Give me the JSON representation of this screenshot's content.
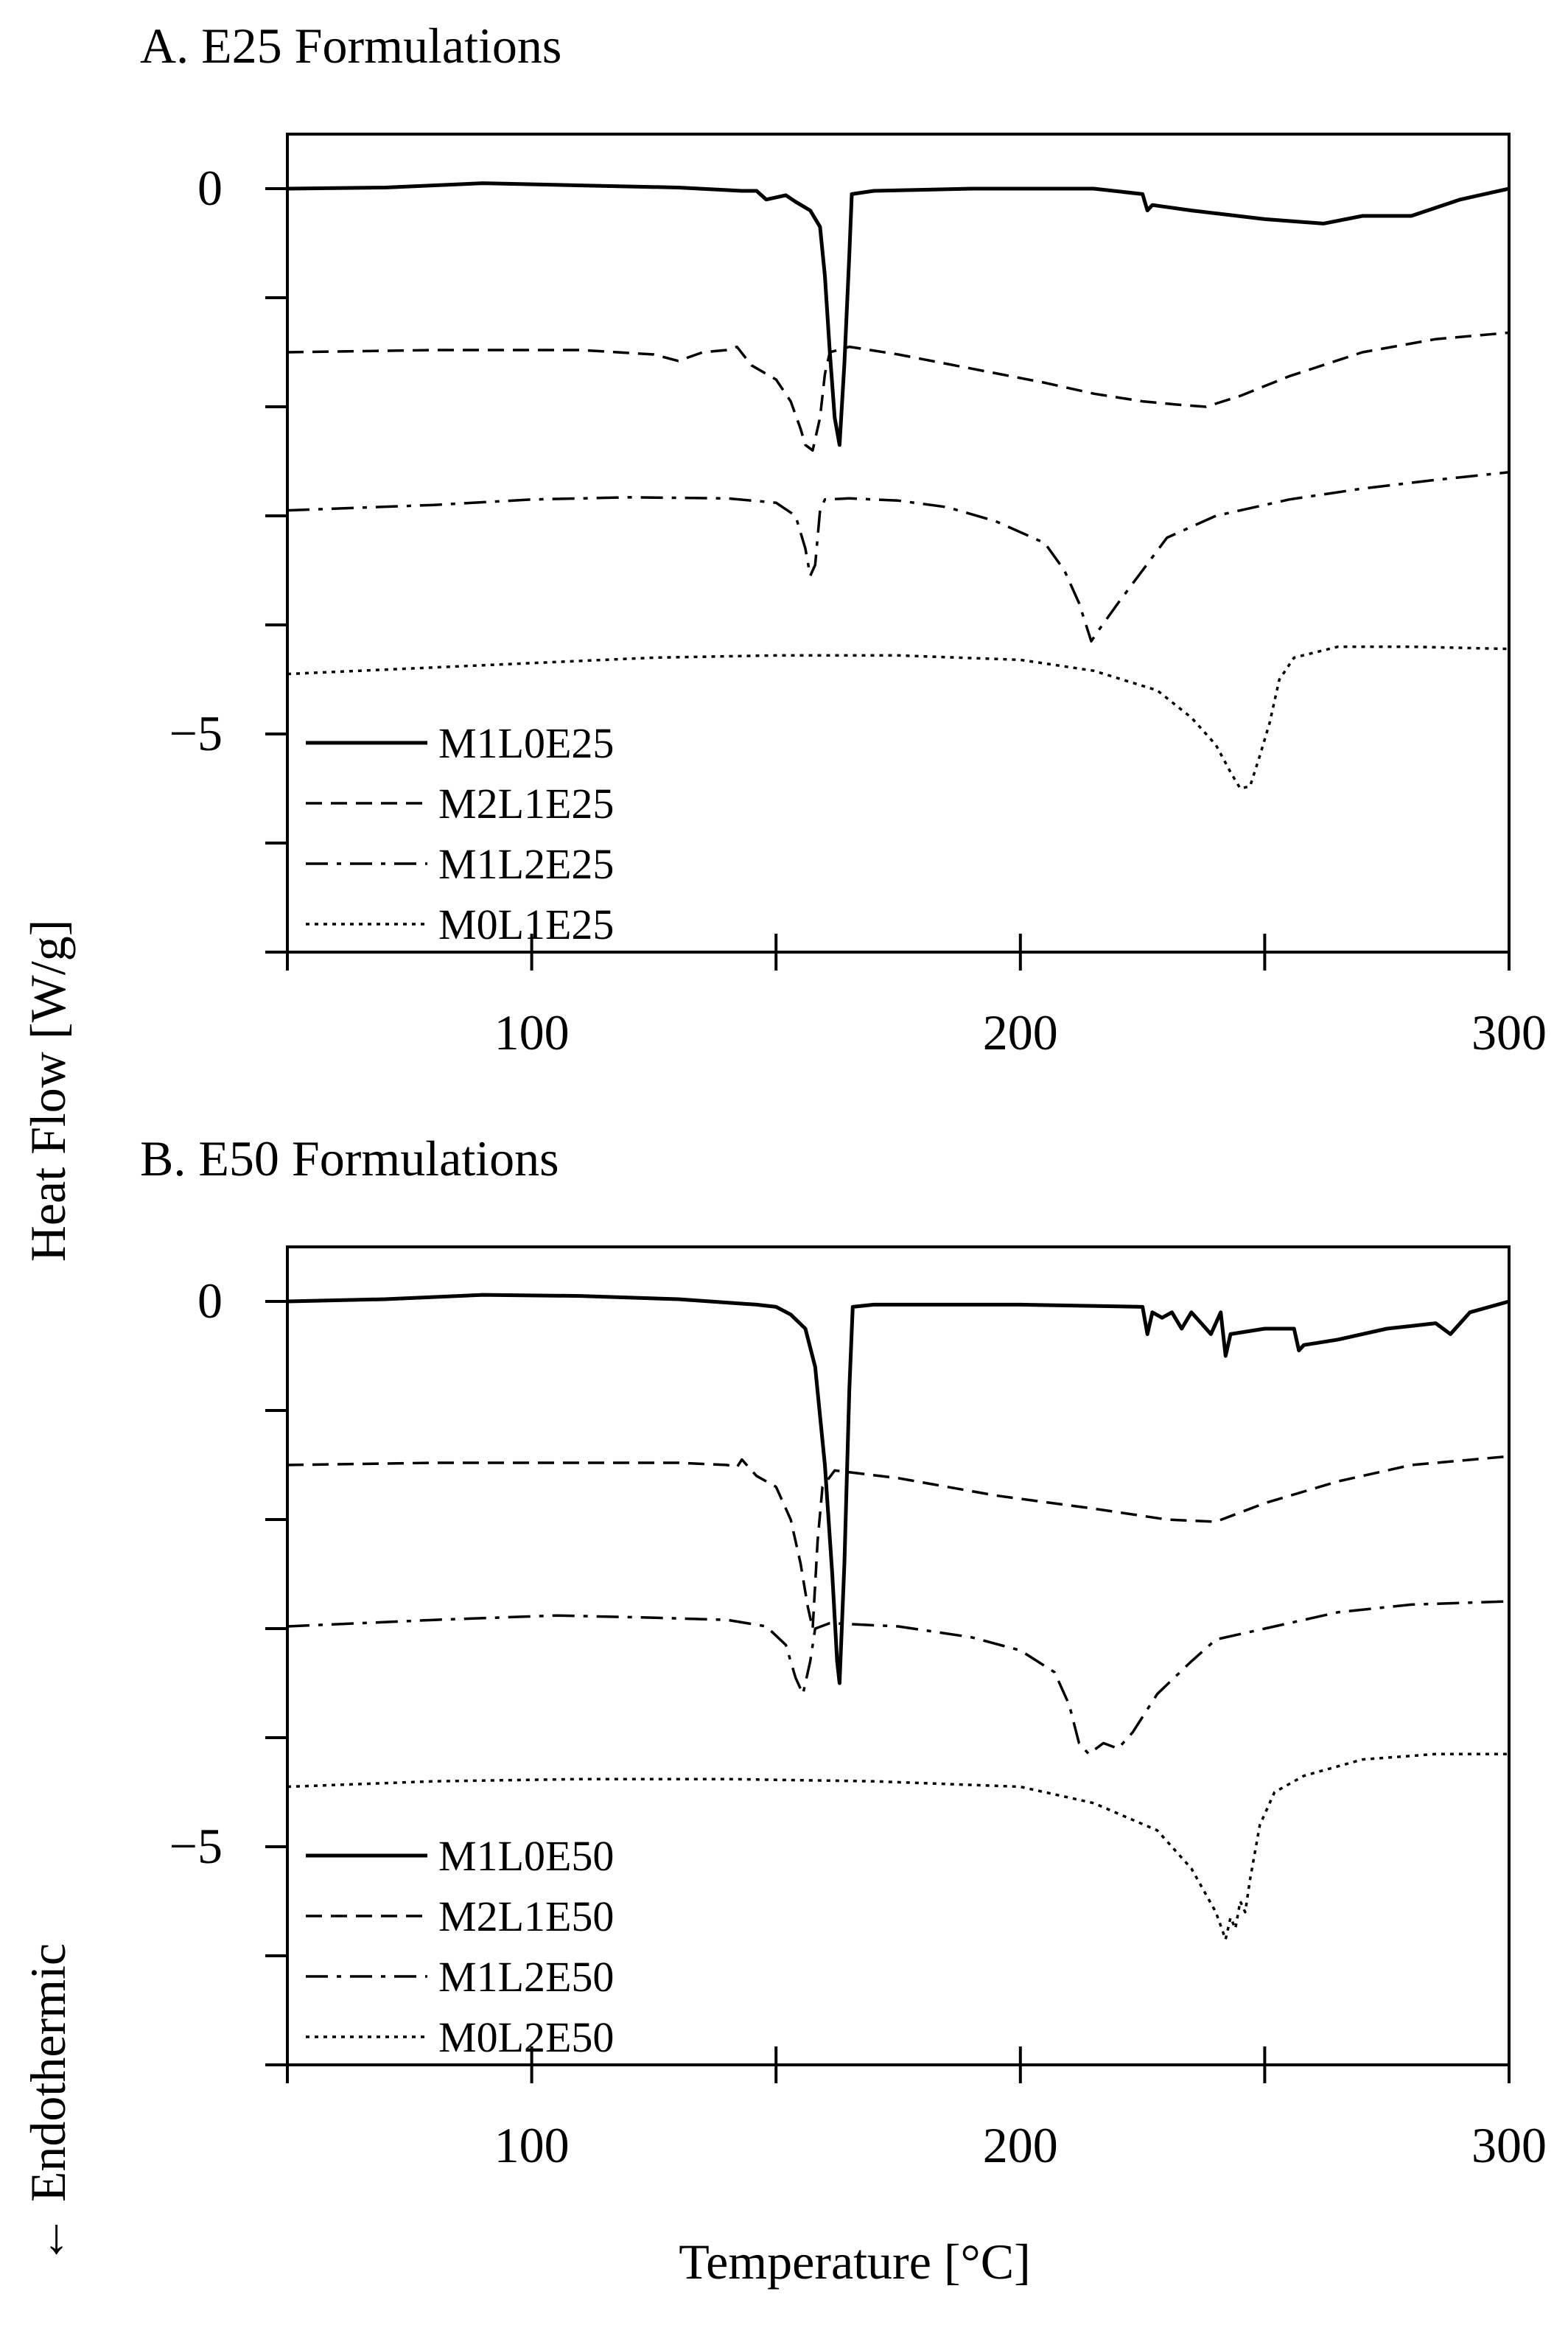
{
  "figure": {
    "ylabel": "Heat Flow [W/g]",
    "ylabel_note": "← Endothermic",
    "xlabel": "Temperature [°C]"
  },
  "chart_data": [
    {
      "type": "line",
      "title": "A. E25 Formulations",
      "xlabel": "Temperature [°C]",
      "ylabel": "Heat Flow [W/g]",
      "xlim": [
        50,
        300
      ],
      "ylim": [
        -7,
        0.5
      ],
      "xticks": [
        100,
        200,
        300
      ],
      "yticks": [
        0,
        -5
      ],
      "xticks_minor": [
        50,
        150,
        250
      ],
      "yticks_minor": [
        -1,
        -2,
        -3,
        -4,
        -6,
        -7
      ],
      "grid": false,
      "legend_position": "bottom-left",
      "series": [
        {
          "name": "M1L0E25",
          "style": "solid",
          "points": [
            [
              50,
              0
            ],
            [
              70,
              0.01
            ],
            [
              90,
              0.05
            ],
            [
              110,
              0.03
            ],
            [
              130,
              0.01
            ],
            [
              143,
              -0.02
            ],
            [
              146,
              -0.02
            ],
            [
              148,
              -0.1
            ],
            [
              152,
              -0.06
            ],
            [
              154,
              -0.12
            ],
            [
              157,
              -0.2
            ],
            [
              159,
              -0.35
            ],
            [
              160,
              -0.8
            ],
            [
              161,
              -1.5
            ],
            [
              162,
              -2.1
            ],
            [
              163,
              -2.35
            ],
            [
              164,
              -1.6
            ],
            [
              165,
              -0.6
            ],
            [
              165.5,
              -0.05
            ],
            [
              170,
              -0.02
            ],
            [
              190,
              0
            ],
            [
              215,
              0
            ],
            [
              225,
              -0.05
            ],
            [
              226,
              -0.2
            ],
            [
              227,
              -0.15
            ],
            [
              235,
              -0.2
            ],
            [
              250,
              -0.28
            ],
            [
              262,
              -0.32
            ],
            [
              270,
              -0.25
            ],
            [
              280,
              -0.25
            ],
            [
              290,
              -0.1
            ],
            [
              300,
              0
            ]
          ]
        },
        {
          "name": "M2L1E25",
          "style": "dashed",
          "points": [
            [
              50,
              -1.5
            ],
            [
              80,
              -1.48
            ],
            [
              110,
              -1.48
            ],
            [
              125,
              -1.52
            ],
            [
              130,
              -1.58
            ],
            [
              135,
              -1.5
            ],
            [
              140,
              -1.48
            ],
            [
              142,
              -1.45
            ],
            [
              145,
              -1.62
            ],
            [
              150,
              -1.75
            ],
            [
              153,
              -1.95
            ],
            [
              155,
              -2.2
            ],
            [
              156,
              -2.35
            ],
            [
              157.5,
              -2.4
            ],
            [
              159,
              -2.1
            ],
            [
              160,
              -1.7
            ],
            [
              161,
              -1.5
            ],
            [
              165,
              -1.45
            ],
            [
              175,
              -1.52
            ],
            [
              190,
              -1.65
            ],
            [
              205,
              -1.78
            ],
            [
              215,
              -1.88
            ],
            [
              225,
              -1.95
            ],
            [
              232,
              -1.98
            ],
            [
              238,
              -2.0
            ],
            [
              245,
              -1.9
            ],
            [
              255,
              -1.72
            ],
            [
              270,
              -1.5
            ],
            [
              285,
              -1.38
            ],
            [
              300,
              -1.32
            ]
          ]
        },
        {
          "name": "M1L2E25",
          "style": "dashdot",
          "points": [
            [
              50,
              -2.95
            ],
            [
              80,
              -2.9
            ],
            [
              100,
              -2.85
            ],
            [
              120,
              -2.83
            ],
            [
              140,
              -2.84
            ],
            [
              150,
              -2.88
            ],
            [
              154,
              -3.0
            ],
            [
              156,
              -3.3
            ],
            [
              157,
              -3.55
            ],
            [
              158,
              -3.45
            ],
            [
              159,
              -2.95
            ],
            [
              160,
              -2.85
            ],
            [
              165,
              -2.84
            ],
            [
              175,
              -2.86
            ],
            [
              185,
              -2.92
            ],
            [
              195,
              -3.05
            ],
            [
              205,
              -3.25
            ],
            [
              209,
              -3.5
            ],
            [
              212,
              -3.8
            ],
            [
              214.5,
              -4.15
            ],
            [
              216,
              -4.05
            ],
            [
              220,
              -3.8
            ],
            [
              225,
              -3.5
            ],
            [
              230,
              -3.2
            ],
            [
              240,
              -3.0
            ],
            [
              255,
              -2.85
            ],
            [
              270,
              -2.75
            ],
            [
              285,
              -2.67
            ],
            [
              300,
              -2.6
            ]
          ]
        },
        {
          "name": "M0L1E25",
          "style": "dotted",
          "points": [
            [
              50,
              -4.45
            ],
            [
              75,
              -4.4
            ],
            [
              100,
              -4.35
            ],
            [
              125,
              -4.3
            ],
            [
              150,
              -4.28
            ],
            [
              175,
              -4.28
            ],
            [
              200,
              -4.32
            ],
            [
              215,
              -4.42
            ],
            [
              228,
              -4.6
            ],
            [
              235,
              -4.85
            ],
            [
              240,
              -5.1
            ],
            [
              243,
              -5.35
            ],
            [
              245,
              -5.5
            ],
            [
              247,
              -5.48
            ],
            [
              249,
              -5.2
            ],
            [
              251,
              -4.9
            ],
            [
              253,
              -4.5
            ],
            [
              256,
              -4.3
            ],
            [
              265,
              -4.2
            ],
            [
              280,
              -4.2
            ],
            [
              300,
              -4.22
            ]
          ]
        }
      ]
    },
    {
      "type": "line",
      "title": "B. E50 Formulations",
      "xlabel": "Temperature [°C]",
      "ylabel": "Heat Flow [W/g]",
      "xlim": [
        50,
        300
      ],
      "ylim": [
        -7,
        0.5
      ],
      "xticks": [
        100,
        200,
        300
      ],
      "yticks": [
        0,
        -5
      ],
      "xticks_minor": [
        50,
        150,
        250
      ],
      "yticks_minor": [
        -1,
        -2,
        -3,
        -4,
        -6,
        -7
      ],
      "grid": false,
      "legend_position": "bottom-left",
      "series": [
        {
          "name": "M1L0E50",
          "style": "solid",
          "points": [
            [
              50,
              0
            ],
            [
              70,
              0.02
            ],
            [
              90,
              0.06
            ],
            [
              110,
              0.05
            ],
            [
              130,
              0.02
            ],
            [
              146,
              -0.03
            ],
            [
              150,
              -0.05
            ],
            [
              153,
              -0.12
            ],
            [
              156,
              -0.25
            ],
            [
              158,
              -0.6
            ],
            [
              160,
              -1.5
            ],
            [
              161.5,
              -2.5
            ],
            [
              162.5,
              -3.3
            ],
            [
              163,
              -3.5
            ],
            [
              164,
              -2.4
            ],
            [
              165,
              -0.8
            ],
            [
              165.7,
              -0.05
            ],
            [
              170,
              -0.03
            ],
            [
              200,
              -0.03
            ],
            [
              225,
              -0.05
            ],
            [
              226,
              -0.3
            ],
            [
              227,
              -0.1
            ],
            [
              229,
              -0.15
            ],
            [
              231,
              -0.1
            ],
            [
              233,
              -0.25
            ],
            [
              235,
              -0.1
            ],
            [
              237,
              -0.2
            ],
            [
              239,
              -0.3
            ],
            [
              241,
              -0.1
            ],
            [
              242,
              -0.5
            ],
            [
              243,
              -0.3
            ],
            [
              250,
              -0.25
            ],
            [
              256,
              -0.25
            ],
            [
              257,
              -0.45
            ],
            [
              258,
              -0.4
            ],
            [
              265,
              -0.35
            ],
            [
              275,
              -0.25
            ],
            [
              285,
              -0.2
            ],
            [
              288,
              -0.3
            ],
            [
              292,
              -0.1
            ],
            [
              300,
              0
            ]
          ]
        },
        {
          "name": "M2L1E50",
          "style": "dashed",
          "points": [
            [
              50,
              -1.5
            ],
            [
              80,
              -1.48
            ],
            [
              110,
              -1.48
            ],
            [
              130,
              -1.48
            ],
            [
              140,
              -1.5
            ],
            [
              142,
              -1.52
            ],
            [
              143,
              -1.45
            ],
            [
              146,
              -1.6
            ],
            [
              150,
              -1.7
            ],
            [
              153,
              -2.0
            ],
            [
              155,
              -2.4
            ],
            [
              156.5,
              -2.8
            ],
            [
              157.5,
              -3.0
            ],
            [
              158.5,
              -2.2
            ],
            [
              159.5,
              -1.7
            ],
            [
              162,
              -1.55
            ],
            [
              175,
              -1.62
            ],
            [
              195,
              -1.78
            ],
            [
              215,
              -1.9
            ],
            [
              230,
              -2.0
            ],
            [
              240,
              -2.02
            ],
            [
              250,
              -1.85
            ],
            [
              265,
              -1.65
            ],
            [
              280,
              -1.5
            ],
            [
              300,
              -1.42
            ]
          ]
        },
        {
          "name": "M1L2E50",
          "style": "dashdot",
          "points": [
            [
              50,
              -2.98
            ],
            [
              80,
              -2.92
            ],
            [
              105,
              -2.88
            ],
            [
              125,
              -2.9
            ],
            [
              140,
              -2.92
            ],
            [
              148,
              -2.98
            ],
            [
              152,
              -3.15
            ],
            [
              154,
              -3.45
            ],
            [
              155.5,
              -3.6
            ],
            [
              157,
              -3.3
            ],
            [
              158,
              -3.0
            ],
            [
              161,
              -2.95
            ],
            [
              175,
              -2.98
            ],
            [
              190,
              -3.08
            ],
            [
              200,
              -3.2
            ],
            [
              207,
              -3.4
            ],
            [
              210,
              -3.7
            ],
            [
              212,
              -4.05
            ],
            [
              214,
              -4.15
            ],
            [
              217,
              -4.05
            ],
            [
              220,
              -4.1
            ],
            [
              223,
              -3.95
            ],
            [
              228,
              -3.6
            ],
            [
              235,
              -3.3
            ],
            [
              240,
              -3.1
            ],
            [
              250,
              -3.0
            ],
            [
              265,
              -2.85
            ],
            [
              280,
              -2.78
            ],
            [
              300,
              -2.75
            ]
          ]
        },
        {
          "name": "M0L2E50",
          "style": "dotted",
          "points": [
            [
              50,
              -4.45
            ],
            [
              80,
              -4.4
            ],
            [
              110,
              -4.38
            ],
            [
              140,
              -4.38
            ],
            [
              170,
              -4.4
            ],
            [
              200,
              -4.45
            ],
            [
              215,
              -4.6
            ],
            [
              228,
              -4.85
            ],
            [
              235,
              -5.2
            ],
            [
              240,
              -5.6
            ],
            [
              242,
              -5.85
            ],
            [
              243,
              -5.65
            ],
            [
              244,
              -5.75
            ],
            [
              245,
              -5.5
            ],
            [
              246,
              -5.6
            ],
            [
              247,
              -5.3
            ],
            [
              249,
              -4.8
            ],
            [
              252,
              -4.5
            ],
            [
              258,
              -4.35
            ],
            [
              270,
              -4.2
            ],
            [
              285,
              -4.15
            ],
            [
              300,
              -4.15
            ]
          ]
        }
      ]
    }
  ]
}
